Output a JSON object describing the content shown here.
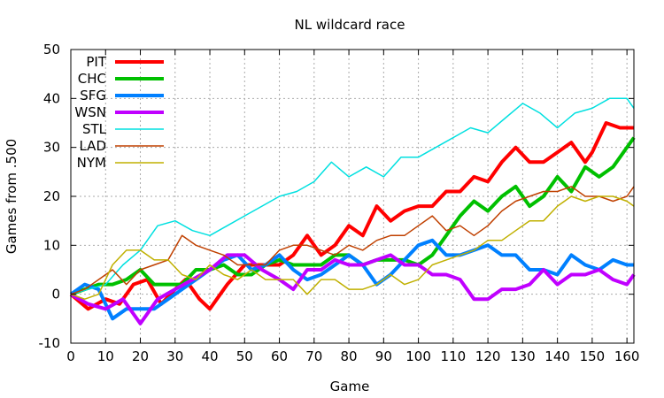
{
  "chart_data": {
    "type": "line",
    "title": "NL wildcard race",
    "xlabel": "Game",
    "ylabel": "Games from .500",
    "xlim": [
      0,
      162
    ],
    "ylim": [
      -10,
      50
    ],
    "xticks": [
      0,
      10,
      20,
      30,
      40,
      50,
      60,
      70,
      80,
      90,
      100,
      110,
      120,
      130,
      140,
      150,
      160
    ],
    "yticks": [
      -10,
      0,
      10,
      20,
      30,
      40,
      50
    ],
    "grid": true,
    "legend_position": "top-left",
    "series": [
      {
        "name": "PIT",
        "color": "#ff0000",
        "width": 4,
        "points": [
          [
            0,
            0
          ],
          [
            5,
            -3
          ],
          [
            10,
            -1
          ],
          [
            14,
            -2
          ],
          [
            18,
            2
          ],
          [
            22,
            3
          ],
          [
            26,
            -2
          ],
          [
            30,
            1
          ],
          [
            33,
            3
          ],
          [
            37,
            -1
          ],
          [
            40,
            -3
          ],
          [
            45,
            2
          ],
          [
            50,
            6
          ],
          [
            55,
            6
          ],
          [
            60,
            6
          ],
          [
            64,
            8
          ],
          [
            68,
            12
          ],
          [
            72,
            8
          ],
          [
            76,
            10
          ],
          [
            80,
            14
          ],
          [
            84,
            12
          ],
          [
            88,
            18
          ],
          [
            92,
            15
          ],
          [
            96,
            17
          ],
          [
            100,
            18
          ],
          [
            104,
            18
          ],
          [
            108,
            21
          ],
          [
            112,
            21
          ],
          [
            116,
            24
          ],
          [
            120,
            23
          ],
          [
            124,
            27
          ],
          [
            128,
            30
          ],
          [
            132,
            27
          ],
          [
            136,
            27
          ],
          [
            140,
            29
          ],
          [
            144,
            31
          ],
          [
            148,
            27
          ],
          [
            150,
            29
          ],
          [
            154,
            35
          ],
          [
            158,
            34
          ],
          [
            162,
            34
          ]
        ]
      },
      {
        "name": "CHC",
        "color": "#00c000",
        "width": 4,
        "points": [
          [
            0,
            0
          ],
          [
            4,
            1
          ],
          [
            8,
            2
          ],
          [
            12,
            2
          ],
          [
            16,
            3
          ],
          [
            20,
            5
          ],
          [
            24,
            2
          ],
          [
            28,
            2
          ],
          [
            32,
            2
          ],
          [
            36,
            5
          ],
          [
            40,
            5
          ],
          [
            44,
            6
          ],
          [
            48,
            4
          ],
          [
            52,
            4
          ],
          [
            56,
            6
          ],
          [
            60,
            7
          ],
          [
            64,
            6
          ],
          [
            68,
            6
          ],
          [
            72,
            6
          ],
          [
            76,
            8
          ],
          [
            80,
            8
          ],
          [
            84,
            6
          ],
          [
            88,
            7
          ],
          [
            92,
            7
          ],
          [
            96,
            7
          ],
          [
            100,
            6
          ],
          [
            104,
            8
          ],
          [
            108,
            12
          ],
          [
            112,
            16
          ],
          [
            116,
            19
          ],
          [
            120,
            17
          ],
          [
            124,
            20
          ],
          [
            128,
            22
          ],
          [
            132,
            18
          ],
          [
            136,
            20
          ],
          [
            140,
            24
          ],
          [
            144,
            21
          ],
          [
            148,
            26
          ],
          [
            152,
            24
          ],
          [
            156,
            26
          ],
          [
            162,
            32
          ]
        ]
      },
      {
        "name": "SFG",
        "color": "#0080ff",
        "width": 4,
        "points": [
          [
            0,
            0
          ],
          [
            4,
            2
          ],
          [
            8,
            1
          ],
          [
            12,
            -5
          ],
          [
            16,
            -3
          ],
          [
            20,
            -3
          ],
          [
            24,
            -3
          ],
          [
            28,
            -1
          ],
          [
            32,
            1
          ],
          [
            36,
            3
          ],
          [
            40,
            5
          ],
          [
            44,
            7
          ],
          [
            48,
            8
          ],
          [
            52,
            5
          ],
          [
            56,
            6
          ],
          [
            60,
            8
          ],
          [
            64,
            5
          ],
          [
            68,
            3
          ],
          [
            72,
            4
          ],
          [
            76,
            6
          ],
          [
            80,
            8
          ],
          [
            84,
            6
          ],
          [
            88,
            2
          ],
          [
            92,
            4
          ],
          [
            96,
            7
          ],
          [
            100,
            10
          ],
          [
            104,
            11
          ],
          [
            108,
            8
          ],
          [
            112,
            8
          ],
          [
            116,
            9
          ],
          [
            120,
            10
          ],
          [
            124,
            8
          ],
          [
            128,
            8
          ],
          [
            132,
            5
          ],
          [
            136,
            5
          ],
          [
            140,
            4
          ],
          [
            144,
            8
          ],
          [
            148,
            6
          ],
          [
            152,
            5
          ],
          [
            156,
            7
          ],
          [
            160,
            6
          ],
          [
            162,
            6
          ]
        ]
      },
      {
        "name": "WSN",
        "color": "#c000ff",
        "width": 4,
        "points": [
          [
            0,
            0
          ],
          [
            5,
            -2
          ],
          [
            10,
            -3
          ],
          [
            15,
            -1
          ],
          [
            20,
            -6
          ],
          [
            25,
            -1
          ],
          [
            30,
            1
          ],
          [
            35,
            3
          ],
          [
            40,
            5
          ],
          [
            45,
            8
          ],
          [
            50,
            8
          ],
          [
            55,
            5
          ],
          [
            60,
            3
          ],
          [
            64,
            1
          ],
          [
            68,
            5
          ],
          [
            72,
            5
          ],
          [
            76,
            7
          ],
          [
            80,
            6
          ],
          [
            84,
            6
          ],
          [
            88,
            7
          ],
          [
            92,
            8
          ],
          [
            96,
            6
          ],
          [
            100,
            6
          ],
          [
            104,
            4
          ],
          [
            108,
            4
          ],
          [
            112,
            3
          ],
          [
            116,
            -1
          ],
          [
            120,
            -1
          ],
          [
            124,
            1
          ],
          [
            128,
            1
          ],
          [
            132,
            2
          ],
          [
            136,
            5
          ],
          [
            140,
            2
          ],
          [
            144,
            4
          ],
          [
            148,
            4
          ],
          [
            152,
            5
          ],
          [
            156,
            3
          ],
          [
            160,
            2
          ],
          [
            162,
            4
          ]
        ]
      },
      {
        "name": "STL",
        "color": "#00e0e0",
        "width": 1.5,
        "points": [
          [
            0,
            0
          ],
          [
            5,
            1
          ],
          [
            10,
            2
          ],
          [
            15,
            6
          ],
          [
            20,
            9
          ],
          [
            25,
            14
          ],
          [
            30,
            15
          ],
          [
            35,
            13
          ],
          [
            40,
            12
          ],
          [
            45,
            14
          ],
          [
            50,
            16
          ],
          [
            55,
            18
          ],
          [
            60,
            20
          ],
          [
            65,
            21
          ],
          [
            70,
            23
          ],
          [
            75,
            27
          ],
          [
            80,
            24
          ],
          [
            85,
            26
          ],
          [
            90,
            24
          ],
          [
            95,
            28
          ],
          [
            100,
            28
          ],
          [
            105,
            30
          ],
          [
            110,
            32
          ],
          [
            115,
            34
          ],
          [
            120,
            33
          ],
          [
            125,
            36
          ],
          [
            130,
            39
          ],
          [
            135,
            37
          ],
          [
            140,
            34
          ],
          [
            145,
            37
          ],
          [
            150,
            38
          ],
          [
            155,
            40
          ],
          [
            160,
            40
          ],
          [
            162,
            38
          ]
        ]
      },
      {
        "name": "LAD",
        "color": "#c04000",
        "width": 1.5,
        "points": [
          [
            0,
            0
          ],
          [
            4,
            1
          ],
          [
            8,
            3
          ],
          [
            12,
            5
          ],
          [
            16,
            2
          ],
          [
            20,
            5
          ],
          [
            24,
            6
          ],
          [
            28,
            7
          ],
          [
            32,
            12
          ],
          [
            36,
            10
          ],
          [
            40,
            9
          ],
          [
            44,
            8
          ],
          [
            48,
            6
          ],
          [
            52,
            6
          ],
          [
            56,
            6
          ],
          [
            60,
            9
          ],
          [
            64,
            10
          ],
          [
            68,
            10
          ],
          [
            72,
            9
          ],
          [
            76,
            8
          ],
          [
            80,
            10
          ],
          [
            84,
            9
          ],
          [
            88,
            11
          ],
          [
            92,
            12
          ],
          [
            96,
            12
          ],
          [
            100,
            14
          ],
          [
            104,
            16
          ],
          [
            108,
            13
          ],
          [
            112,
            14
          ],
          [
            116,
            12
          ],
          [
            120,
            14
          ],
          [
            124,
            17
          ],
          [
            128,
            19
          ],
          [
            132,
            20
          ],
          [
            136,
            21
          ],
          [
            140,
            21
          ],
          [
            144,
            22
          ],
          [
            148,
            20
          ],
          [
            152,
            20
          ],
          [
            156,
            19
          ],
          [
            160,
            20
          ],
          [
            162,
            22
          ]
        ]
      },
      {
        "name": "NYM",
        "color": "#c0b000",
        "width": 1.5,
        "points": [
          [
            0,
            0
          ],
          [
            4,
            -1
          ],
          [
            8,
            0
          ],
          [
            12,
            6
          ],
          [
            16,
            9
          ],
          [
            20,
            9
          ],
          [
            24,
            7
          ],
          [
            28,
            7
          ],
          [
            32,
            4
          ],
          [
            36,
            3
          ],
          [
            40,
            6
          ],
          [
            44,
            4
          ],
          [
            48,
            3
          ],
          [
            52,
            5
          ],
          [
            56,
            3
          ],
          [
            60,
            3
          ],
          [
            64,
            3
          ],
          [
            68,
            0
          ],
          [
            72,
            3
          ],
          [
            76,
            3
          ],
          [
            80,
            1
          ],
          [
            84,
            1
          ],
          [
            88,
            2
          ],
          [
            92,
            4
          ],
          [
            96,
            2
          ],
          [
            100,
            3
          ],
          [
            104,
            6
          ],
          [
            108,
            7
          ],
          [
            112,
            8
          ],
          [
            116,
            9
          ],
          [
            120,
            11
          ],
          [
            124,
            11
          ],
          [
            128,
            13
          ],
          [
            132,
            15
          ],
          [
            136,
            15
          ],
          [
            140,
            18
          ],
          [
            144,
            20
          ],
          [
            148,
            19
          ],
          [
            152,
            20
          ],
          [
            156,
            20
          ],
          [
            160,
            19
          ],
          [
            162,
            18
          ]
        ]
      }
    ]
  }
}
